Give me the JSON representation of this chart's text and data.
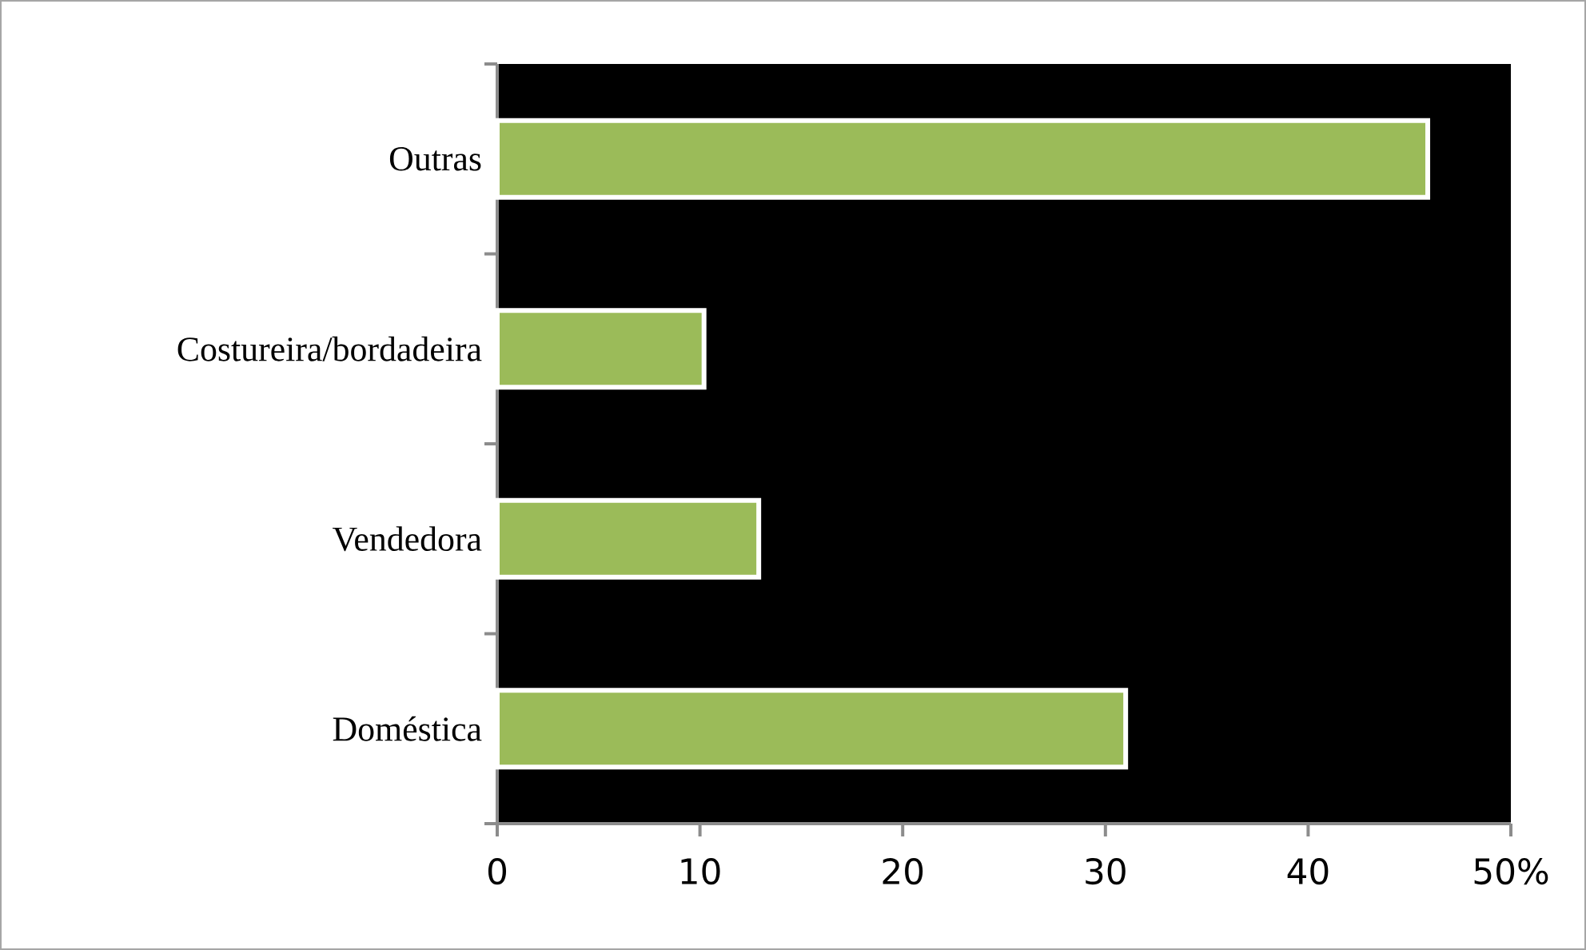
{
  "chart_data": {
    "type": "bar",
    "orientation": "horizontal",
    "categories": [
      "Outras",
      "Costureira/bordadeira",
      "Vendedora",
      "Doméstica"
    ],
    "values": [
      45.9,
      10.2,
      12.9,
      31.0
    ],
    "color": "#9bbb59",
    "xlim": [
      0,
      50
    ],
    "xticks": [
      0,
      10,
      20,
      30,
      40,
      {
        "value": 50,
        "label": "50%"
      }
    ],
    "grid": false
  }
}
